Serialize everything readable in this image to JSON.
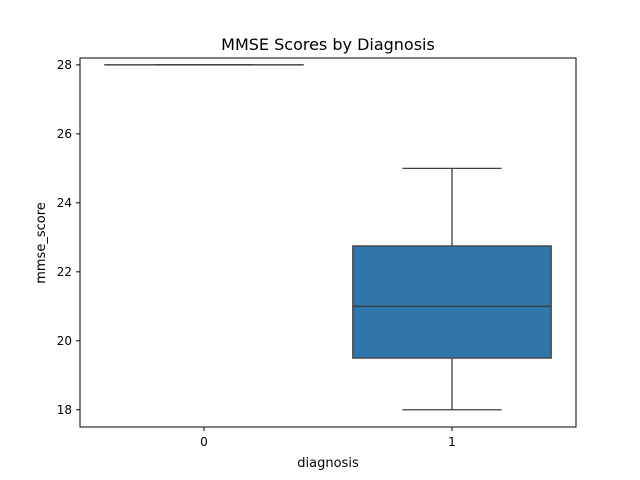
{
  "chart_data": {
    "type": "box",
    "title": "MMSE Scores by Diagnosis",
    "xlabel": "diagnosis",
    "ylabel": "mmse_score",
    "categories": [
      "0",
      "1"
    ],
    "boxes": [
      {
        "category": "0",
        "min": 28,
        "q1": 28,
        "median": 28,
        "q3": 28,
        "max": 28
      },
      {
        "category": "1",
        "min": 18,
        "q1": 19.5,
        "median": 21,
        "q3": 22.75,
        "max": 25
      }
    ],
    "yticks": [
      18,
      20,
      22,
      24,
      26,
      28
    ],
    "ylim": [
      17.5,
      28.2
    ],
    "grid": false,
    "legend": "none",
    "colors": {
      "box_fill": "#2f77aa",
      "line": "#3f3f3f",
      "axis": "#000000"
    }
  }
}
